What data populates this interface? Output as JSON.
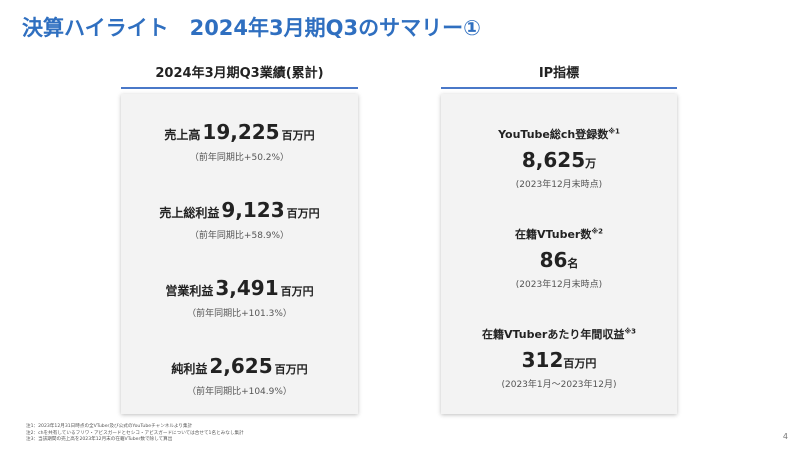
{
  "title": "決算ハイライト　2024年3月期Q3のサマリー①",
  "left": {
    "header": "2024年3月期Q3業績(累計)",
    "metrics": [
      {
        "label": "売上高",
        "value": "19,225",
        "unit": "百万円",
        "sub": "（前年同期比+50.2%）"
      },
      {
        "label": "売上総利益",
        "value": "9,123",
        "unit": "百万円",
        "sub": "（前年同期比+58.9%）"
      },
      {
        "label": "営業利益",
        "value": "3,491",
        "unit": "百万円",
        "sub": "（前年同期比+101.3%）"
      },
      {
        "label": "純利益",
        "value": "2,625",
        "unit": "百万円",
        "sub": "（前年同期比+104.9%）"
      }
    ]
  },
  "right": {
    "header": "IP指標",
    "items": [
      {
        "label": "YouTube総ch登録数",
        "note": "※1",
        "value": "8,625",
        "unit": "万",
        "sub": "(2023年12月末時点)"
      },
      {
        "label": "在籍VTuber数",
        "note": "※2",
        "value": "86",
        "unit": "名",
        "sub": "(2023年12月末時点)"
      },
      {
        "label": "在籍VTuberあたり年間収益",
        "note": "※3",
        "value": "312",
        "unit": "百万円",
        "sub": "(2023年1月〜2023年12月)"
      }
    ]
  },
  "footnotes": [
    "注1：2023年12月31日時点の全VTuber及び公式のYouTubeチャンネルより集計",
    "注2：chを共有しているフリワ・アビスガードとセシコ・アビスガードについては合せて1名とみなし集計",
    "注3：当該期間の売上高を2023年12月末の在籍VTuber数で除して算出"
  ],
  "page_number": "4"
}
